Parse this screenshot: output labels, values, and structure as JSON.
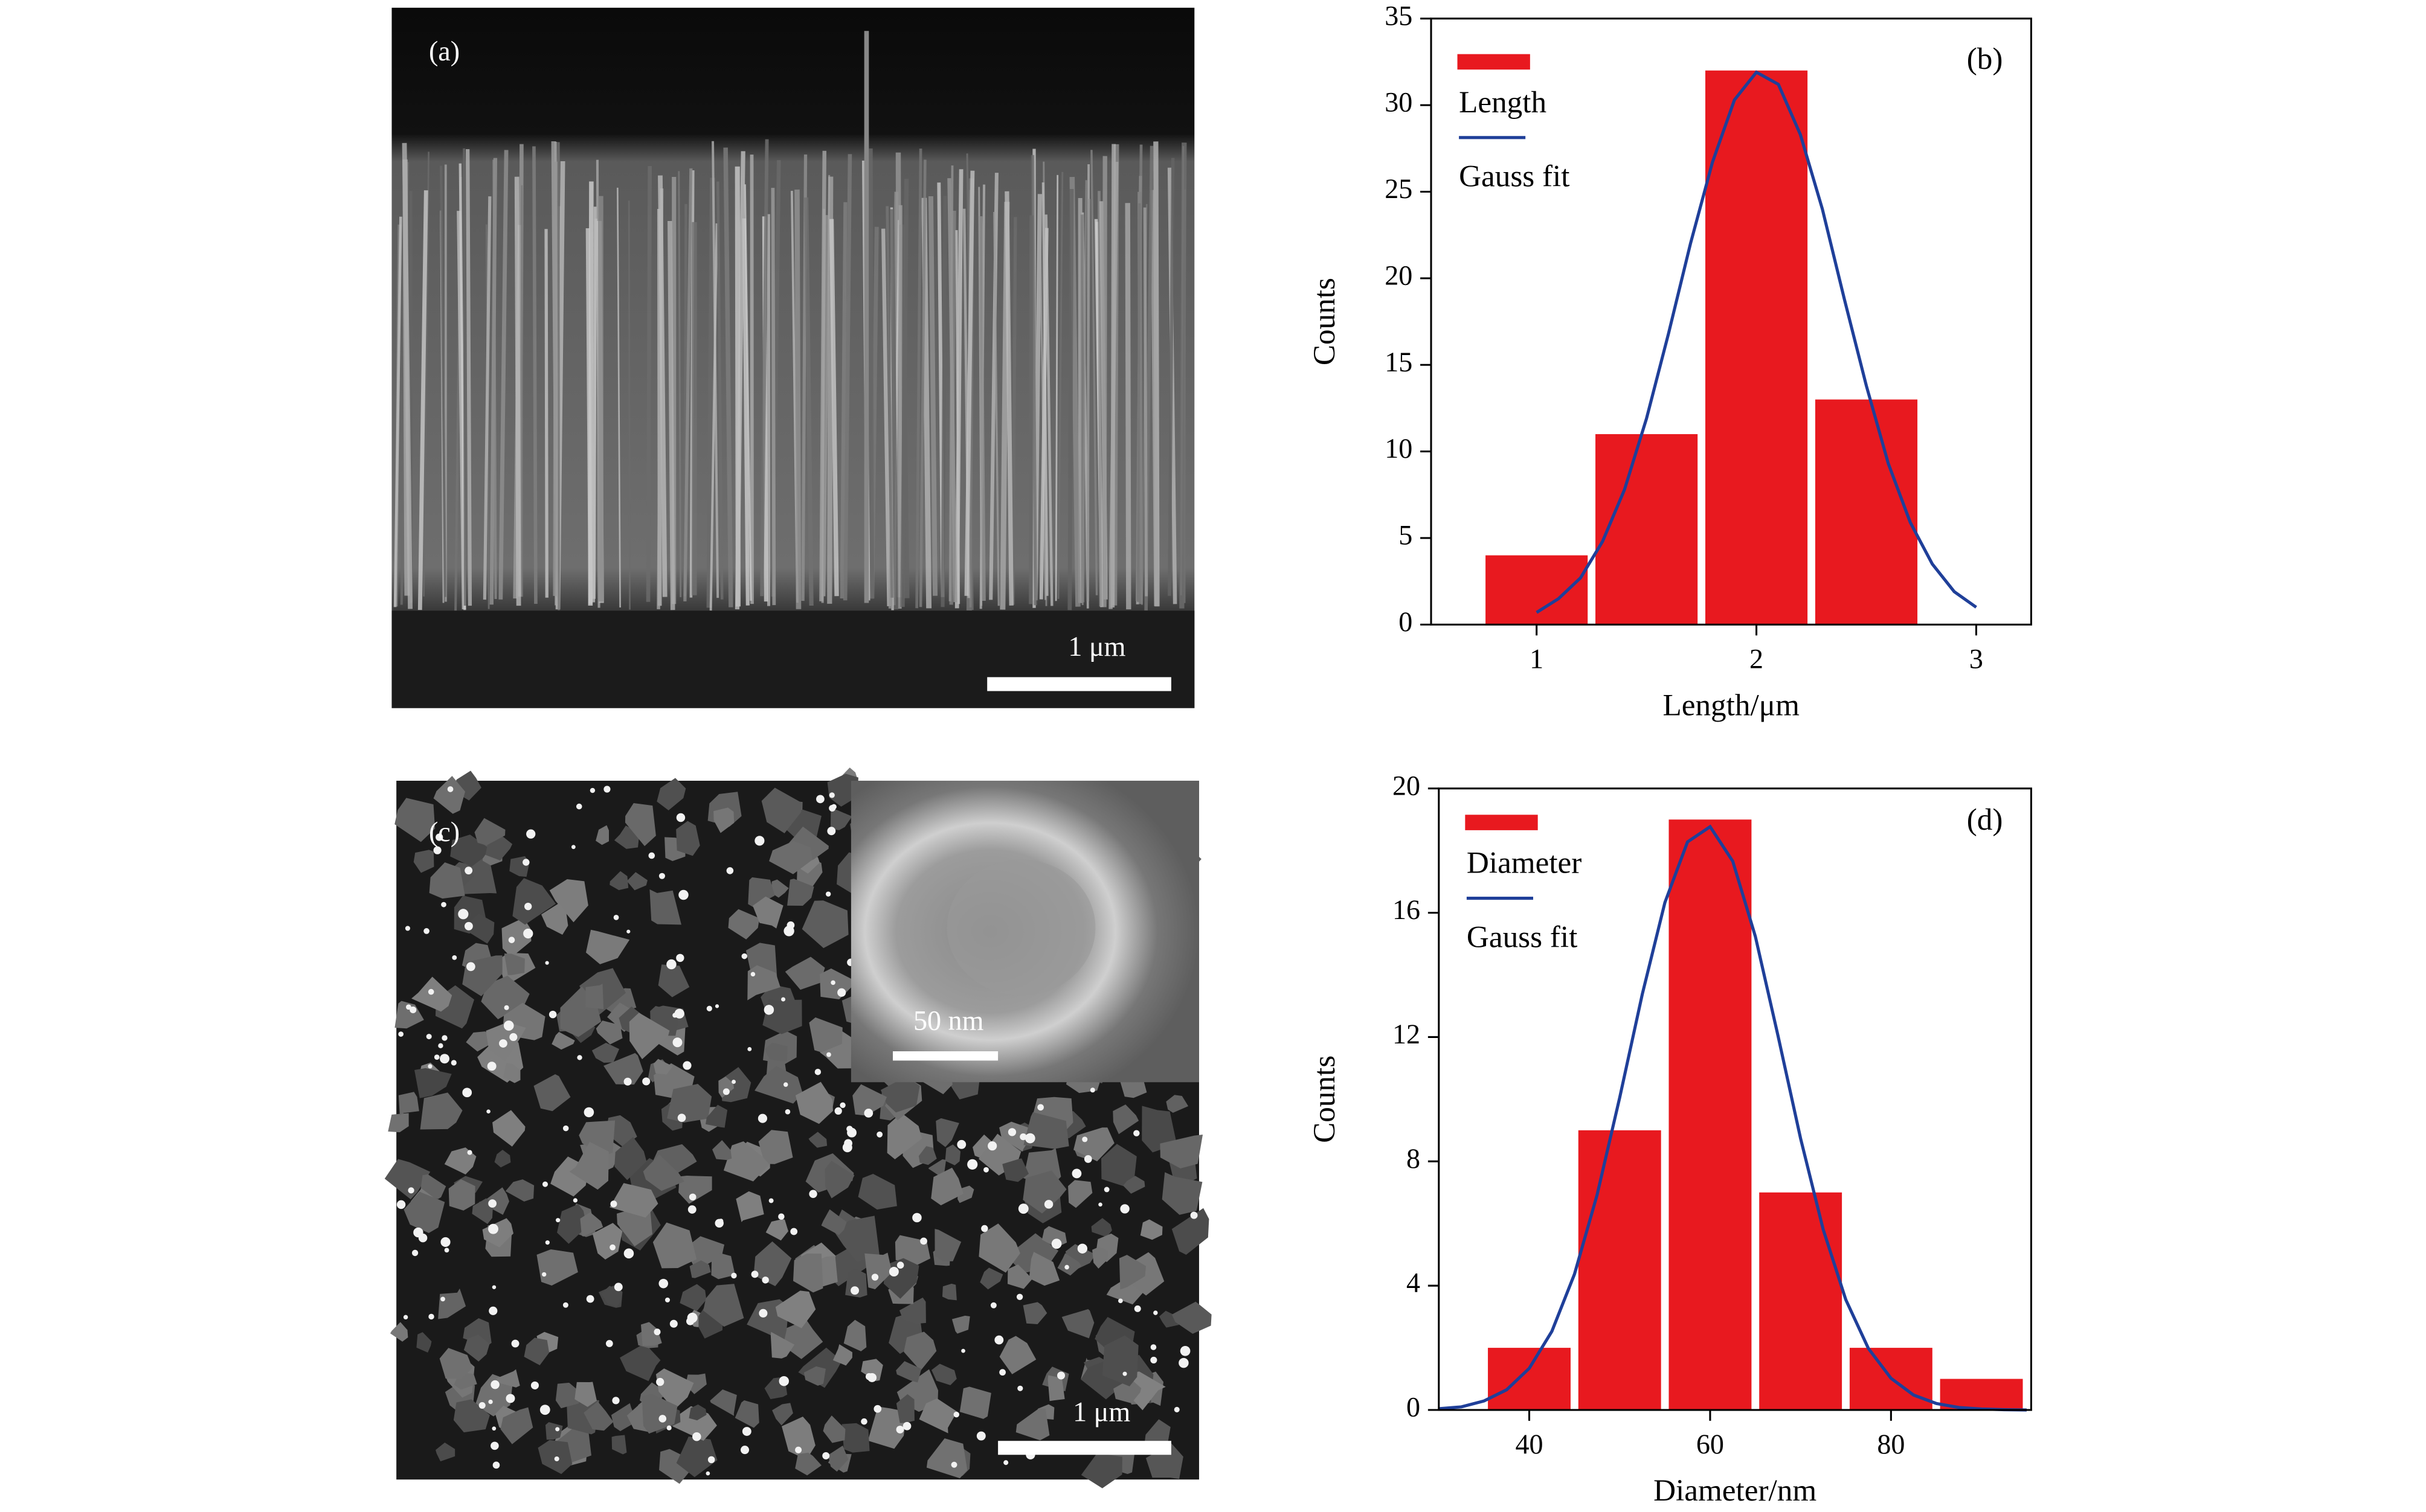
{
  "images": [
    {
      "label": "(a)",
      "scale_bar": "1 μm"
    },
    {
      "label": "(c)",
      "scale_bar": "1 μm",
      "inset_scale_bar": "50 nm"
    }
  ],
  "chart_data": [
    {
      "type": "histogram",
      "panel_label": "(b)",
      "xlabel": "Length/μm",
      "ylabel": "Counts",
      "name": "Length",
      "color": "#e8191f",
      "bins": [
        0.75,
        1.25,
        1.75,
        2.25,
        2.75
      ],
      "values": [
        4,
        11,
        32,
        13
      ],
      "fit": {
        "name": "Gauss fit",
        "color": "#1f3f99",
        "x": [
          1.0,
          1.1,
          1.2,
          1.3,
          1.4,
          1.5,
          1.6,
          1.7,
          1.8,
          1.9,
          2.0,
          2.1,
          2.2,
          2.3,
          2.4,
          2.5,
          2.6,
          2.7,
          2.8,
          2.9,
          3.0
        ],
        "values": [
          0.7,
          1.5,
          2.7,
          4.8,
          7.8,
          11.9,
          16.8,
          22.0,
          26.7,
          30.3,
          31.9,
          31.2,
          28.3,
          24.0,
          18.8,
          13.8,
          9.3,
          5.9,
          3.5,
          1.9,
          1.0
        ]
      },
      "xlim": [
        0.52,
        3.25
      ],
      "ylim": [
        0,
        35
      ],
      "xticks": [
        1,
        2,
        3
      ],
      "yticks": [
        0,
        5,
        10,
        15,
        20,
        25,
        30,
        35
      ]
    },
    {
      "type": "histogram",
      "panel_label": "(d)",
      "xlabel": "Diameter/nm",
      "ylabel": "Counts",
      "name": "Diameter",
      "color": "#e8191f",
      "bins": [
        35,
        45,
        55,
        65,
        75,
        85,
        95
      ],
      "values": [
        2,
        9,
        19,
        7,
        2,
        1
      ],
      "fit": {
        "name": "Gauss fit",
        "color": "#1f3f99",
        "x": [
          30,
          32.5,
          35,
          37.5,
          40,
          42.5,
          45,
          47.5,
          50,
          52.5,
          55,
          57.5,
          60,
          62.5,
          65,
          67.5,
          70,
          72.5,
          75,
          77.5,
          80,
          82.5,
          85,
          87.5,
          90,
          92.5,
          95
        ],
        "values": [
          0.04,
          0.1,
          0.29,
          0.65,
          1.34,
          2.53,
          4.37,
          6.92,
          10.05,
          13.38,
          16.33,
          18.28,
          18.77,
          17.66,
          15.24,
          12.05,
          8.74,
          5.81,
          3.55,
          1.98,
          1.02,
          0.48,
          0.21,
          0.08,
          0.03,
          0.01,
          0
        ]
      },
      "xlim": [
        30,
        95.5
      ],
      "ylim": [
        0,
        20
      ],
      "xticks": [
        40,
        60,
        80
      ],
      "yticks": [
        0,
        4,
        8,
        12,
        16,
        20
      ]
    }
  ]
}
